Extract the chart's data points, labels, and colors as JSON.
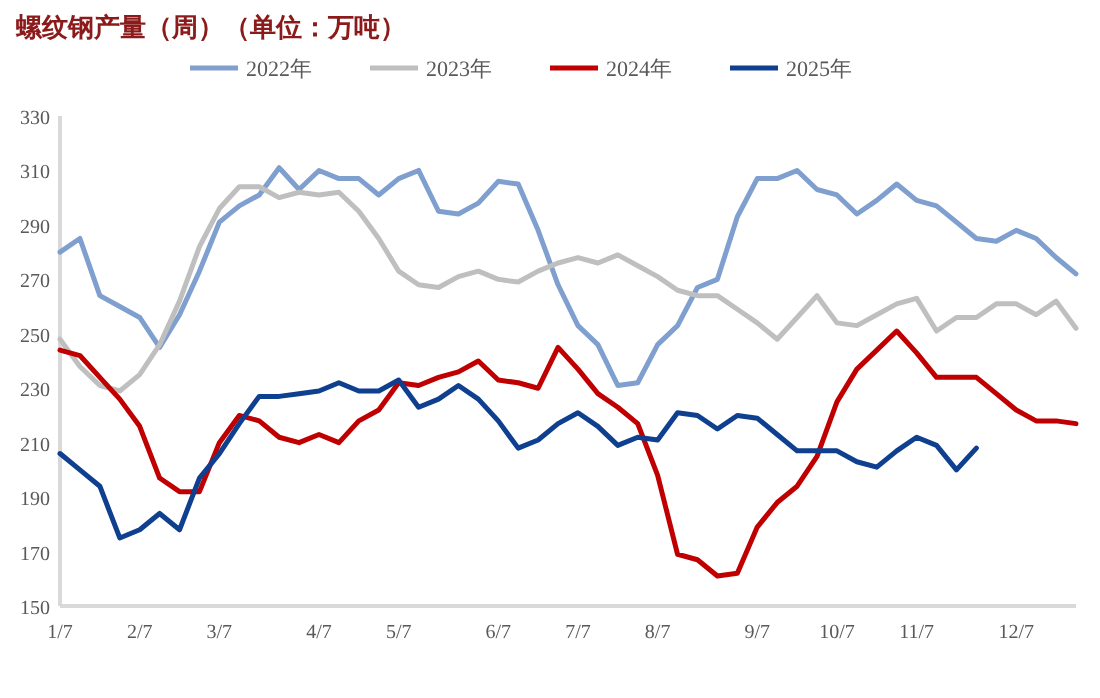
{
  "chart_data": {
    "type": "line",
    "title": "螺纹钢产量（周）（单位：万吨）",
    "categories": [
      "1/7",
      null,
      null,
      null,
      "2/7",
      null,
      null,
      null,
      "3/7",
      null,
      null,
      null,
      null,
      "4/7",
      null,
      null,
      null,
      "5/7",
      null,
      null,
      null,
      null,
      "6/7",
      null,
      null,
      null,
      "7/7",
      null,
      null,
      null,
      "8/7",
      null,
      null,
      null,
      null,
      "9/7",
      null,
      null,
      null,
      "10/7",
      null,
      null,
      null,
      "11/7",
      null,
      null,
      null,
      null,
      "12/7",
      null,
      null,
      null
    ],
    "ylim": [
      150,
      330
    ],
    "yticks": [
      150,
      170,
      190,
      210,
      230,
      250,
      270,
      290,
      310,
      330
    ],
    "legend": "top",
    "grid": false,
    "marker": "none",
    "line_style": "solid",
    "series": [
      {
        "name": "2022年",
        "color": "#7f9fcf",
        "values": [
          280,
          285,
          264,
          260,
          256,
          245,
          257,
          273,
          291,
          297,
          301,
          311,
          303,
          310,
          307,
          307,
          301,
          307,
          310,
          295,
          294,
          298,
          306,
          305,
          288,
          268,
          253,
          246,
          231,
          232,
          246,
          253,
          267,
          270,
          293,
          307,
          307,
          310,
          303,
          301,
          294,
          299,
          305,
          299,
          297,
          291,
          285,
          284,
          288,
          285,
          278,
          272
        ]
      },
      {
        "name": "2023年",
        "color": "#bfbfbf",
        "values": [
          248,
          238,
          231,
          229,
          235,
          246,
          262,
          282,
          296,
          304,
          304,
          300,
          302,
          301,
          302,
          295,
          285,
          273,
          268,
          267,
          271,
          273,
          270,
          269,
          273,
          276,
          278,
          276,
          279,
          275,
          271,
          266,
          264,
          264,
          259,
          254,
          248,
          256,
          264,
          254,
          253,
          257,
          261,
          263,
          251,
          256,
          256,
          261,
          261,
          257,
          262,
          252
        ]
      },
      {
        "name": "2024年",
        "color": "#c00000",
        "values": [
          244,
          242,
          234,
          226,
          216,
          197,
          192,
          192,
          210,
          220,
          218,
          212,
          210,
          213,
          210,
          218,
          222,
          232,
          231,
          234,
          236,
          240,
          233,
          232,
          230,
          245,
          237,
          228,
          223,
          217,
          198,
          169,
          167,
          161,
          162,
          179,
          188,
          194,
          205,
          225,
          237,
          244,
          251,
          243,
          234,
          234,
          234,
          228,
          222,
          218,
          218,
          217
        ]
      },
      {
        "name": "2025年",
        "color": "#0f3f8f",
        "values": [
          206,
          200,
          194,
          175,
          178,
          184,
          178,
          197,
          206,
          217,
          227,
          227,
          228,
          229,
          232,
          229,
          229,
          233,
          223,
          226,
          231,
          226,
          218,
          208,
          211,
          217,
          221,
          216,
          209,
          212,
          211,
          221,
          220,
          215,
          220,
          219,
          213,
          207,
          207,
          207,
          203,
          201,
          207,
          212,
          209,
          200,
          208,
          null,
          null,
          null,
          null,
          null
        ]
      }
    ]
  }
}
